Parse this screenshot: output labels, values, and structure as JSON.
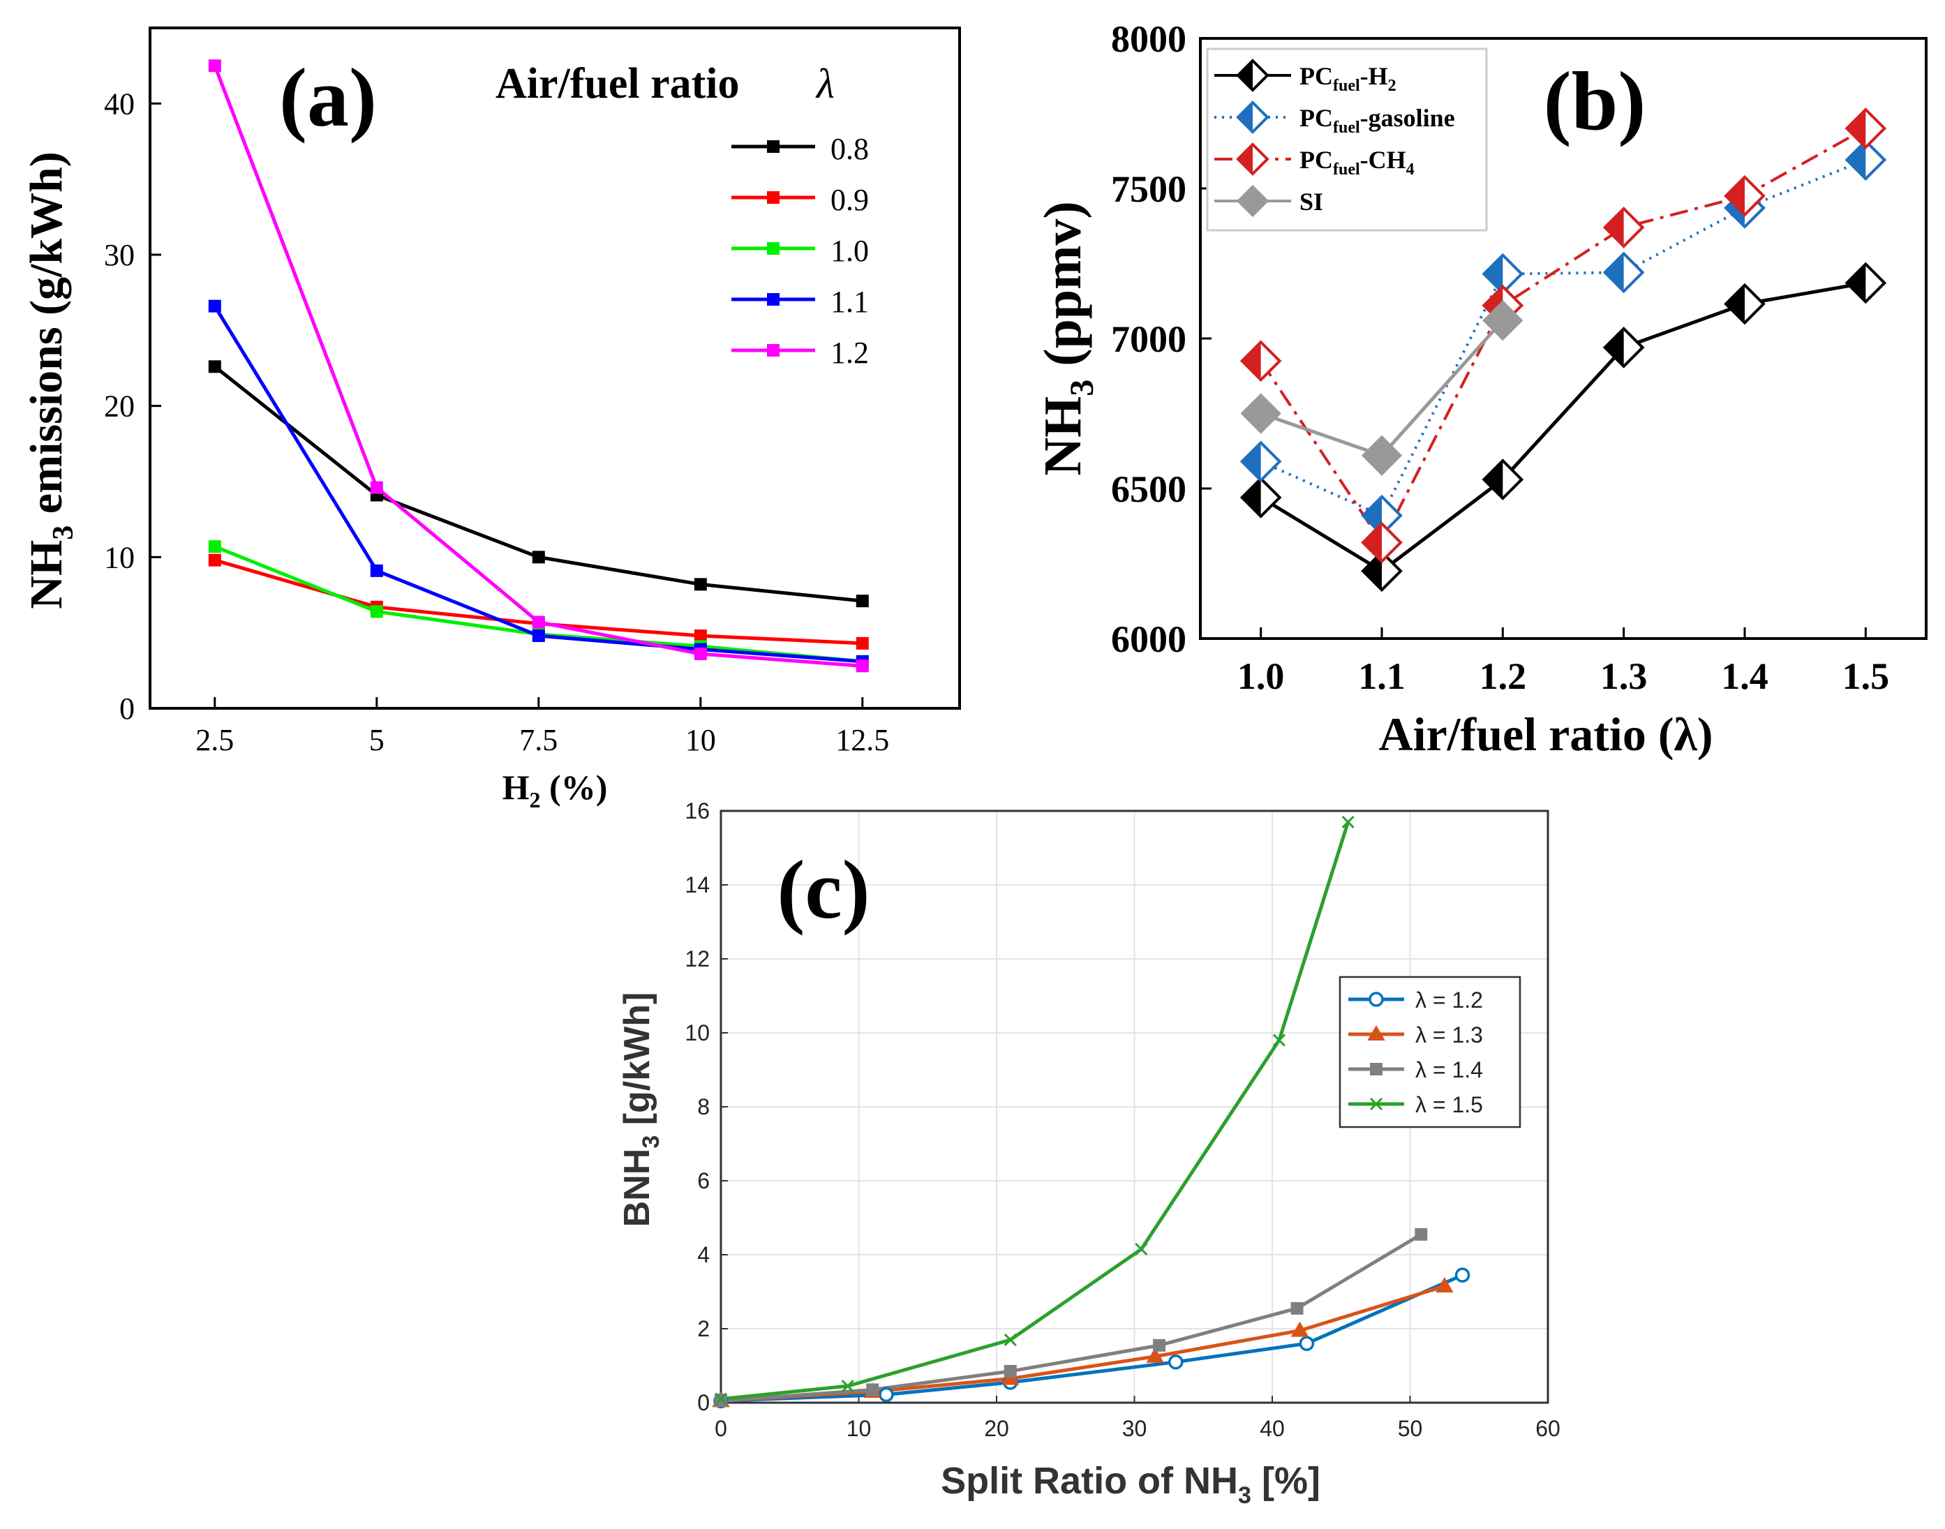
{
  "chart_data": [
    {
      "id": "a",
      "type": "line",
      "panel_label": "(a)",
      "title": "",
      "xlabel": "H",
      "xlabel_sub": "2",
      "xlabel_rest": " (%)",
      "ylabel": "NH",
      "ylabel_sub": "3",
      "ylabel_rest": " emissions (g/kWh)",
      "legend_title": "Air/fuel ratio",
      "legend_symbol": "λ",
      "xlim": [
        1.5,
        14
      ],
      "ylim": [
        0,
        45
      ],
      "x": [
        2.5,
        5,
        7.5,
        10,
        12.5
      ],
      "x_tick_labels": [
        "2.5",
        "5",
        "7.5",
        "10",
        "12.5"
      ],
      "y_ticks": [
        0,
        10,
        20,
        30,
        40
      ],
      "y_tick_labels": [
        "0",
        "10",
        "20",
        "30",
        "40"
      ],
      "series": [
        {
          "name": "0.8",
          "color": "#000000",
          "values": [
            22.6,
            14.1,
            10.0,
            8.2,
            7.1
          ]
        },
        {
          "name": "0.9",
          "color": "#ff0000",
          "values": [
            9.8,
            6.7,
            5.6,
            4.8,
            4.3
          ]
        },
        {
          "name": "1.0",
          "color": "#00ee00",
          "values": [
            10.7,
            6.4,
            4.9,
            4.1,
            3.1
          ]
        },
        {
          "name": "1.1",
          "color": "#0000ff",
          "values": [
            26.6,
            9.1,
            4.8,
            3.9,
            3.1
          ]
        },
        {
          "name": "1.2",
          "color": "#ff00ff",
          "values": [
            42.5,
            14.6,
            5.7,
            3.6,
            2.8
          ]
        }
      ]
    },
    {
      "id": "b",
      "type": "line",
      "panel_label": "(b)",
      "title": "",
      "xlabel": "Air/fuel ratio (λ)",
      "ylabel": "NH",
      "ylabel_sub": "3",
      "ylabel_rest": " (ppmv)",
      "xlim": [
        0.95,
        1.55
      ],
      "ylim": [
        6000,
        8000
      ],
      "x": [
        1.0,
        1.1,
        1.2,
        1.3,
        1.4,
        1.5
      ],
      "x_tick_labels": [
        "1.0",
        "1.1",
        "1.2",
        "1.3",
        "1.4",
        "1.5"
      ],
      "y_ticks": [
        6000,
        6500,
        7000,
        7500,
        8000
      ],
      "y_tick_labels": [
        "6000",
        "6500",
        "7000",
        "7500",
        "8000"
      ],
      "legend_position": "top-left",
      "series": [
        {
          "name": "PC",
          "name_sub": "fuel",
          "name_rest": "-H",
          "name_sub2": "2",
          "color": "#000000",
          "line": "solid",
          "x": [
            1.0,
            1.1,
            1.2,
            1.3,
            1.4,
            1.5
          ],
          "values": [
            6470,
            6225,
            6530,
            6970,
            7115,
            7185
          ]
        },
        {
          "name": "PC",
          "name_sub": "fuel",
          "name_rest": "-gasoline",
          "name_sub2": "",
          "color": "#1f6fbf",
          "line": "dotted",
          "x": [
            1.0,
            1.1,
            1.2,
            1.3,
            1.4,
            1.5
          ],
          "values": [
            6590,
            6410,
            7215,
            7220,
            7435,
            7595
          ]
        },
        {
          "name": "PC",
          "name_sub": "fuel",
          "name_rest": "-CH",
          "name_sub2": "4",
          "color": "#d42020",
          "line": "dashdot",
          "x": [
            1.0,
            1.1,
            1.2,
            1.3,
            1.4,
            1.5
          ],
          "values": [
            6925,
            6320,
            7110,
            7370,
            7475,
            7700
          ]
        },
        {
          "name": "SI",
          "name_sub": "",
          "name_rest": "",
          "name_sub2": "",
          "color": "#999999",
          "line": "solid",
          "x": [
            1.0,
            1.1,
            1.2
          ],
          "values": [
            6750,
            6610,
            7060
          ]
        }
      ]
    },
    {
      "id": "c",
      "type": "line",
      "panel_label": "(c)",
      "title": "",
      "xlabel": "Split Ratio of NH",
      "xlabel_sub": "3",
      "xlabel_rest": " [%]",
      "ylabel": "BNH",
      "ylabel_sub": "3",
      "ylabel_rest": " [g/kWh]",
      "xlim": [
        0,
        60
      ],
      "ylim": [
        0,
        16
      ],
      "x_ticks": [
        0,
        10,
        20,
        30,
        40,
        50,
        60
      ],
      "x_tick_labels": [
        "0",
        "10",
        "20",
        "30",
        "40",
        "50",
        "60"
      ],
      "y_ticks": [
        0,
        2,
        4,
        6,
        8,
        10,
        12,
        14,
        16
      ],
      "y_tick_labels": [
        "0",
        "2",
        "4",
        "6",
        "8",
        "10",
        "12",
        "14",
        "16"
      ],
      "grid": true,
      "legend_position": "right",
      "series": [
        {
          "name": "λ = 1.2",
          "color": "#0072bd",
          "marker": "circle",
          "x": [
            0,
            12,
            21,
            33,
            42.5,
            53.8
          ],
          "values": [
            0.05,
            0.22,
            0.55,
            1.1,
            1.6,
            3.45
          ]
        },
        {
          "name": "λ = 1.3",
          "color": "#d95319",
          "marker": "triangle",
          "x": [
            0,
            11,
            21,
            31.5,
            42,
            52.5
          ],
          "values": [
            0.05,
            0.3,
            0.65,
            1.25,
            1.95,
            3.15
          ]
        },
        {
          "name": "λ = 1.4",
          "color": "#7f7f7f",
          "marker": "square",
          "x": [
            0,
            11,
            21,
            31.8,
            41.8,
            50.8
          ],
          "values": [
            0.05,
            0.35,
            0.85,
            1.55,
            2.55,
            4.55
          ]
        },
        {
          "name": "λ = 1.5",
          "color": "#2ca02c",
          "marker": "x",
          "x": [
            0,
            9.2,
            21,
            30.5,
            40.5,
            45.5
          ],
          "values": [
            0.1,
            0.45,
            1.7,
            4.15,
            9.8,
            15.7
          ]
        }
      ]
    }
  ]
}
